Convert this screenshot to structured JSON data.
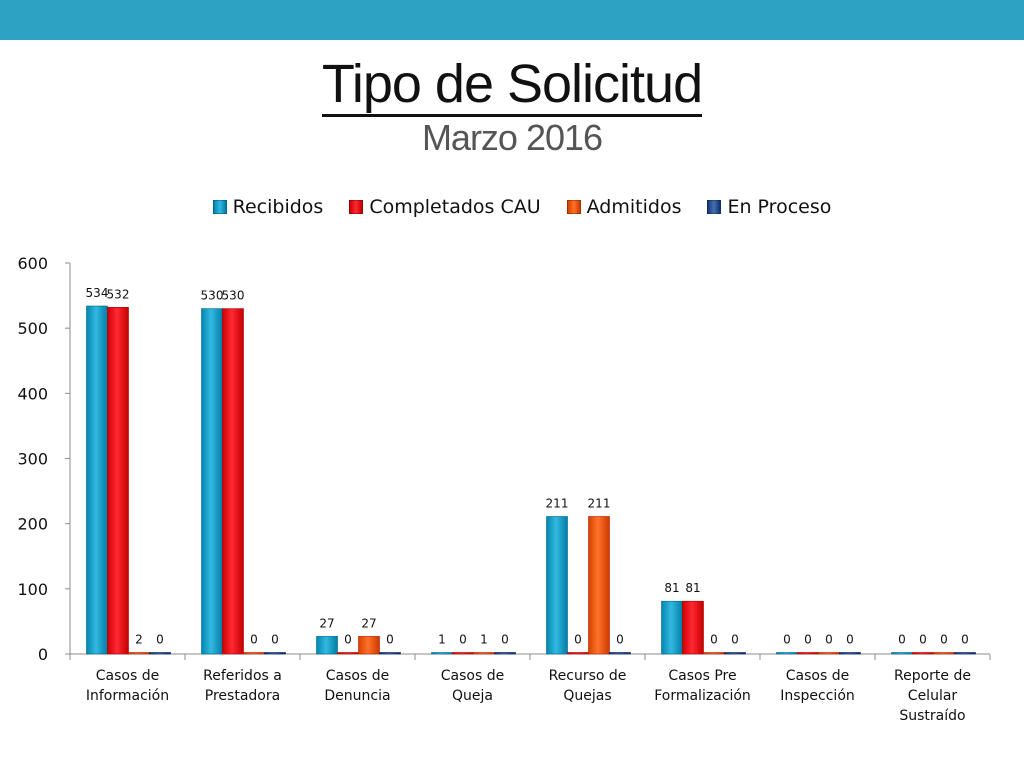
{
  "header": {
    "title": "Tipo de Solicitud",
    "subtitle": "Marzo 2016"
  },
  "colors": {
    "top_bar": "#2ea2c3"
  },
  "chart_data": {
    "type": "bar",
    "title": "Tipo de Solicitud",
    "subtitle": "Marzo 2016",
    "categories": [
      [
        "Casos de",
        "Información"
      ],
      [
        "Referidos a",
        "Prestadora"
      ],
      [
        "Casos de",
        "Denuncia"
      ],
      [
        "Casos de",
        "Queja"
      ],
      [
        "Recurso de",
        "Quejas"
      ],
      [
        "Casos Pre",
        "Formalización"
      ],
      [
        "Casos de",
        "Inspección"
      ],
      [
        "Reporte de",
        "Celular",
        "Sustraído"
      ]
    ],
    "series": [
      {
        "name": "Recibidos",
        "color": "#1aa0c8",
        "values": [
          534,
          530,
          27,
          1,
          211,
          81,
          0,
          0
        ]
      },
      {
        "name": "Completados CAU",
        "color": "#e8101a",
        "values": [
          532,
          530,
          0,
          0,
          0,
          81,
          0,
          0
        ]
      },
      {
        "name": "Admitidos",
        "color": "#f05a10",
        "values": [
          2,
          0,
          27,
          1,
          211,
          0,
          0,
          0
        ]
      },
      {
        "name": "En Proceso",
        "color": "#2f5596",
        "values": [
          0,
          0,
          0,
          0,
          0,
          0,
          0,
          0
        ]
      }
    ],
    "ylim": [
      0,
      600
    ],
    "yticks": [
      0,
      100,
      200,
      300,
      400,
      500,
      600
    ],
    "legend_position": "top",
    "grid": false
  }
}
